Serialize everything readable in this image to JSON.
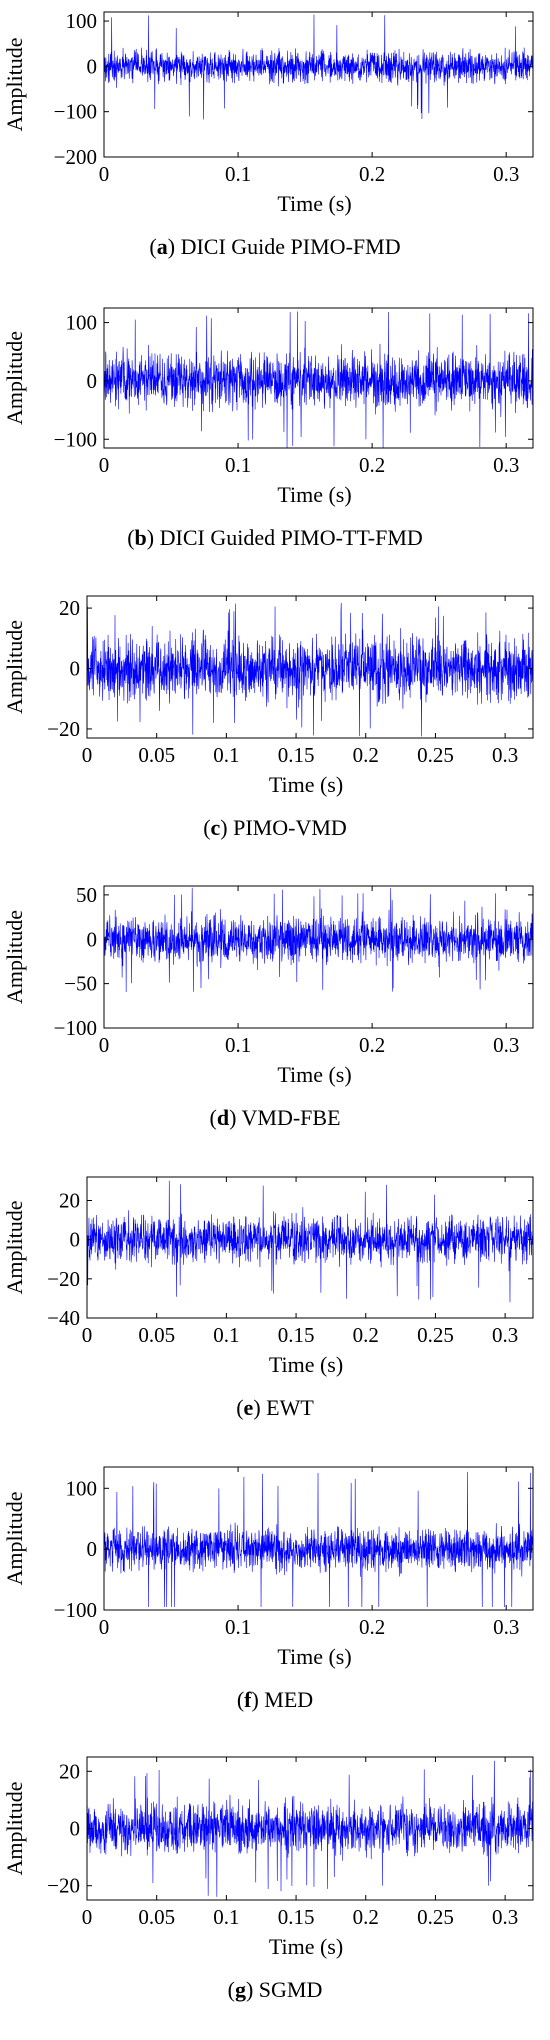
{
  "figure": {
    "subplots": [
      {
        "tag": "a",
        "caption": "DICI Guide PIMO-FMD"
      },
      {
        "tag": "b",
        "caption": "DICI Guided PIMO-TT-FMD"
      },
      {
        "tag": "c",
        "caption": "PIMO-VMD"
      },
      {
        "tag": "d",
        "caption": "VMD-FBE"
      },
      {
        "tag": "e",
        "caption": "EWT"
      },
      {
        "tag": "f",
        "caption": "MED"
      },
      {
        "tag": "g",
        "caption": "SGMD"
      }
    ]
  },
  "chart_data": [
    {
      "type": "line",
      "caption": "(a) DICI Guide PIMO-FMD",
      "xlabel": "Time (s)",
      "ylabel": "Amplitude",
      "xlim": [
        0,
        0.32
      ],
      "ylim": [
        -200,
        120
      ],
      "xticks": [
        0,
        0.1,
        0.2,
        0.3
      ],
      "xtick_labels": [
        "0",
        "0.1",
        "0.2",
        "0.3"
      ],
      "yticks": [
        100,
        0,
        -100,
        -200
      ],
      "ytick_labels": [
        "100",
        "0",
        "−100",
        "−200"
      ],
      "series": [
        {
          "color": "#0000ff",
          "signal": {
            "duration": 0.32,
            "typical_amplitude": 40,
            "peak_amplitude": 120,
            "min_value": -140,
            "max_value": 118
          }
        }
      ],
      "grid": false
    },
    {
      "type": "line",
      "caption": "(b) DICI Guided PIMO-TT-FMD",
      "xlabel": "Time (s)",
      "ylabel": "Amplitude",
      "xlim": [
        0,
        0.32
      ],
      "ylim": [
        -115,
        125
      ],
      "xticks": [
        0,
        0.1,
        0.2,
        0.3
      ],
      "xtick_labels": [
        "0",
        "0.1",
        "0.2",
        "0.3"
      ],
      "yticks": [
        100,
        0,
        -100
      ],
      "ytick_labels": [
        "100",
        "0",
        "−100"
      ],
      "series": [
        {
          "color": "#0000ff",
          "signal": {
            "duration": 0.32,
            "typical_amplitude": 55,
            "peak_amplitude": 120,
            "min_value": -115,
            "max_value": 120
          }
        }
      ],
      "grid": false
    },
    {
      "type": "line",
      "caption": "(c) PIMO-VMD",
      "xlabel": "Time (s)",
      "ylabel": "Amplitude",
      "xlim": [
        0,
        0.32
      ],
      "ylim": [
        -23,
        24
      ],
      "xticks": [
        0,
        0.05,
        0.1,
        0.15,
        0.2,
        0.25,
        0.3
      ],
      "xtick_labels": [
        "0",
        "0.05",
        "0.1",
        "0.15",
        "0.2",
        "0.25",
        "0.3"
      ],
      "yticks": [
        20,
        0,
        -20
      ],
      "ytick_labels": [
        "20",
        "0",
        "−20"
      ],
      "series": [
        {
          "color": "#0000ff",
          "signal": {
            "duration": 0.32,
            "typical_amplitude": 12,
            "peak_amplitude": 23,
            "min_value": -23,
            "max_value": 23
          }
        }
      ],
      "grid": false
    },
    {
      "type": "line",
      "caption": "(d) VMD-FBE",
      "xlabel": "Time (s)",
      "ylabel": "Amplitude",
      "xlim": [
        0,
        0.32
      ],
      "ylim": [
        -100,
        60
      ],
      "xticks": [
        0,
        0.1,
        0.2,
        0.3
      ],
      "xtick_labels": [
        "0",
        "0.1",
        "0.2",
        "0.3"
      ],
      "yticks": [
        50,
        0,
        -50,
        -100
      ],
      "ytick_labels": [
        "50",
        "0",
        "−50",
        "−100"
      ],
      "series": [
        {
          "color": "#0000ff",
          "signal": {
            "duration": 0.32,
            "typical_amplitude": 30,
            "peak_amplitude": 60,
            "min_value": -65,
            "max_value": 58
          }
        }
      ],
      "grid": false
    },
    {
      "type": "line",
      "caption": "(e) EWT",
      "xlabel": "Time (s)",
      "ylabel": "Amplitude",
      "xlim": [
        0,
        0.32
      ],
      "ylim": [
        -40,
        32
      ],
      "xticks": [
        0,
        0.05,
        0.1,
        0.15,
        0.2,
        0.25,
        0.3
      ],
      "xtick_labels": [
        "0",
        "0.05",
        "0.1",
        "0.15",
        "0.2",
        "0.25",
        "0.3"
      ],
      "yticks": [
        20,
        0,
        -20,
        -40
      ],
      "ytick_labels": [
        "20",
        "0",
        "−20",
        "−40"
      ],
      "series": [
        {
          "color": "#0000ff",
          "signal": {
            "duration": 0.32,
            "typical_amplitude": 14,
            "peak_amplitude": 32,
            "min_value": -36,
            "max_value": 30
          }
        }
      ],
      "grid": false
    },
    {
      "type": "line",
      "caption": "(f) MED",
      "xlabel": "Time (s)",
      "ylabel": "Amplitude",
      "xlim": [
        0,
        0.32
      ],
      "ylim": [
        -100,
        135
      ],
      "xticks": [
        0,
        0.1,
        0.2,
        0.3
      ],
      "xtick_labels": [
        "0",
        "0.1",
        "0.2",
        "0.3"
      ],
      "yticks": [
        100,
        0,
        -100
      ],
      "ytick_labels": [
        "100",
        "0",
        "−100"
      ],
      "series": [
        {
          "color": "#0000ff",
          "signal": {
            "duration": 0.32,
            "typical_amplitude": 40,
            "peak_amplitude": 130,
            "min_value": -95,
            "max_value": 130
          }
        }
      ],
      "grid": false
    },
    {
      "type": "line",
      "caption": "(g) SGMD",
      "xlabel": "Time (s)",
      "ylabel": "Amplitude",
      "xlim": [
        0,
        0.32
      ],
      "ylim": [
        -25,
        25
      ],
      "xticks": [
        0,
        0.05,
        0.1,
        0.15,
        0.2,
        0.25,
        0.3
      ],
      "xtick_labels": [
        "0",
        "0.05",
        "0.1",
        "0.15",
        "0.2",
        "0.25",
        "0.3"
      ],
      "yticks": [
        20,
        0,
        -20
      ],
      "ytick_labels": [
        "20",
        "0",
        "−20"
      ],
      "series": [
        {
          "color": "#0000ff",
          "signal": {
            "duration": 0.32,
            "typical_amplitude": 10,
            "peak_amplitude": 24,
            "min_value": -24,
            "max_value": 24
          }
        }
      ],
      "grid": false
    }
  ]
}
